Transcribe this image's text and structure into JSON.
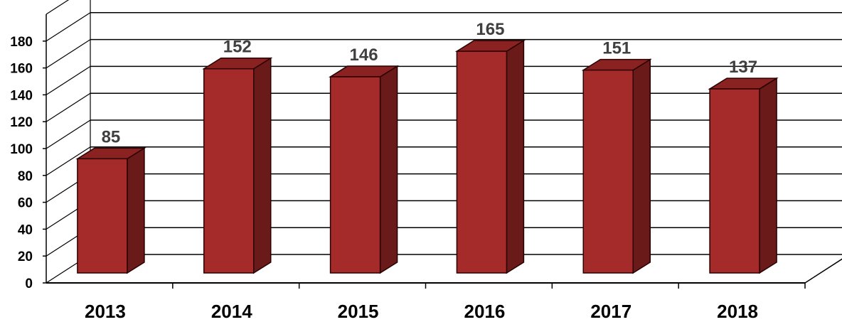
{
  "chart_data": {
    "type": "bar",
    "categories": [
      "2013",
      "2014",
      "2015",
      "2016",
      "2017",
      "2018"
    ],
    "values": [
      85,
      152,
      146,
      165,
      151,
      137
    ],
    "data_labels": [
      "85",
      "152",
      "146",
      "165",
      "151",
      "137"
    ],
    "title": "",
    "xlabel": "",
    "ylabel": "",
    "ylim": [
      0,
      180
    ],
    "yticks": [
      "0",
      "20",
      "40",
      "60",
      "80",
      "100",
      "120",
      "140",
      "160",
      "180"
    ],
    "grid": true,
    "style": "3d-column",
    "bar_color": "#a52a2a"
  }
}
